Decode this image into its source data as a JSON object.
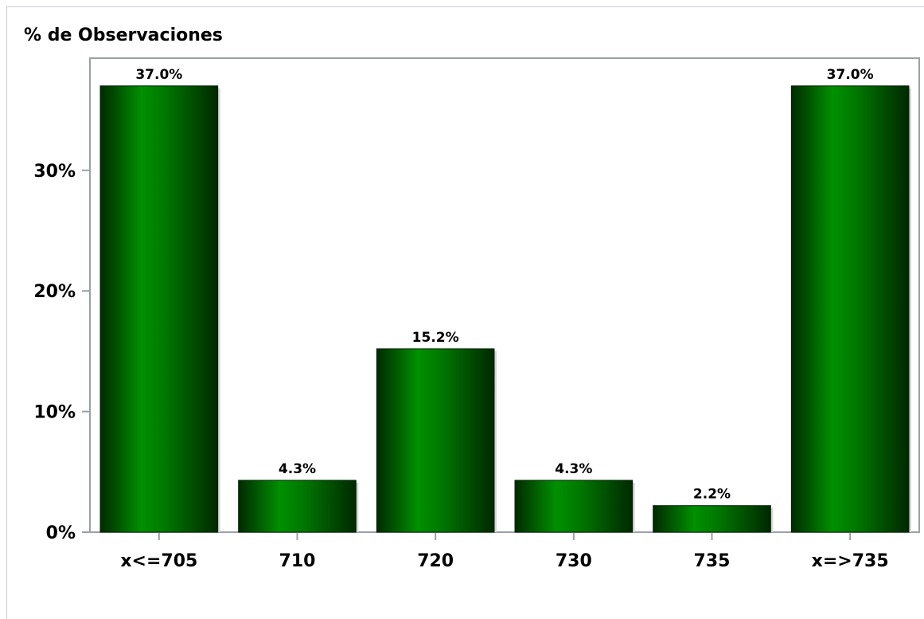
{
  "chart_data": {
    "type": "bar",
    "title": "% de Observaciones",
    "categories": [
      "x<=705",
      "710",
      "720",
      "730",
      "735",
      "x=>735"
    ],
    "values": [
      37.0,
      4.3,
      15.2,
      4.3,
      2.2,
      37.0
    ],
    "data_labels": [
      "37.0%",
      "4.3%",
      "15.2%",
      "4.3%",
      "2.2%",
      "37.0%"
    ],
    "yticks": [
      0,
      10,
      20,
      30
    ],
    "ytick_labels": [
      "0%",
      "10%",
      "20%",
      "30%"
    ],
    "ylim": [
      0,
      39.3
    ],
    "xlabel": "",
    "ylabel": "",
    "grid": false,
    "colors": {
      "bar_dark": "#003300",
      "bar_light": "#00a000",
      "axis": "#9ba0a8"
    }
  }
}
